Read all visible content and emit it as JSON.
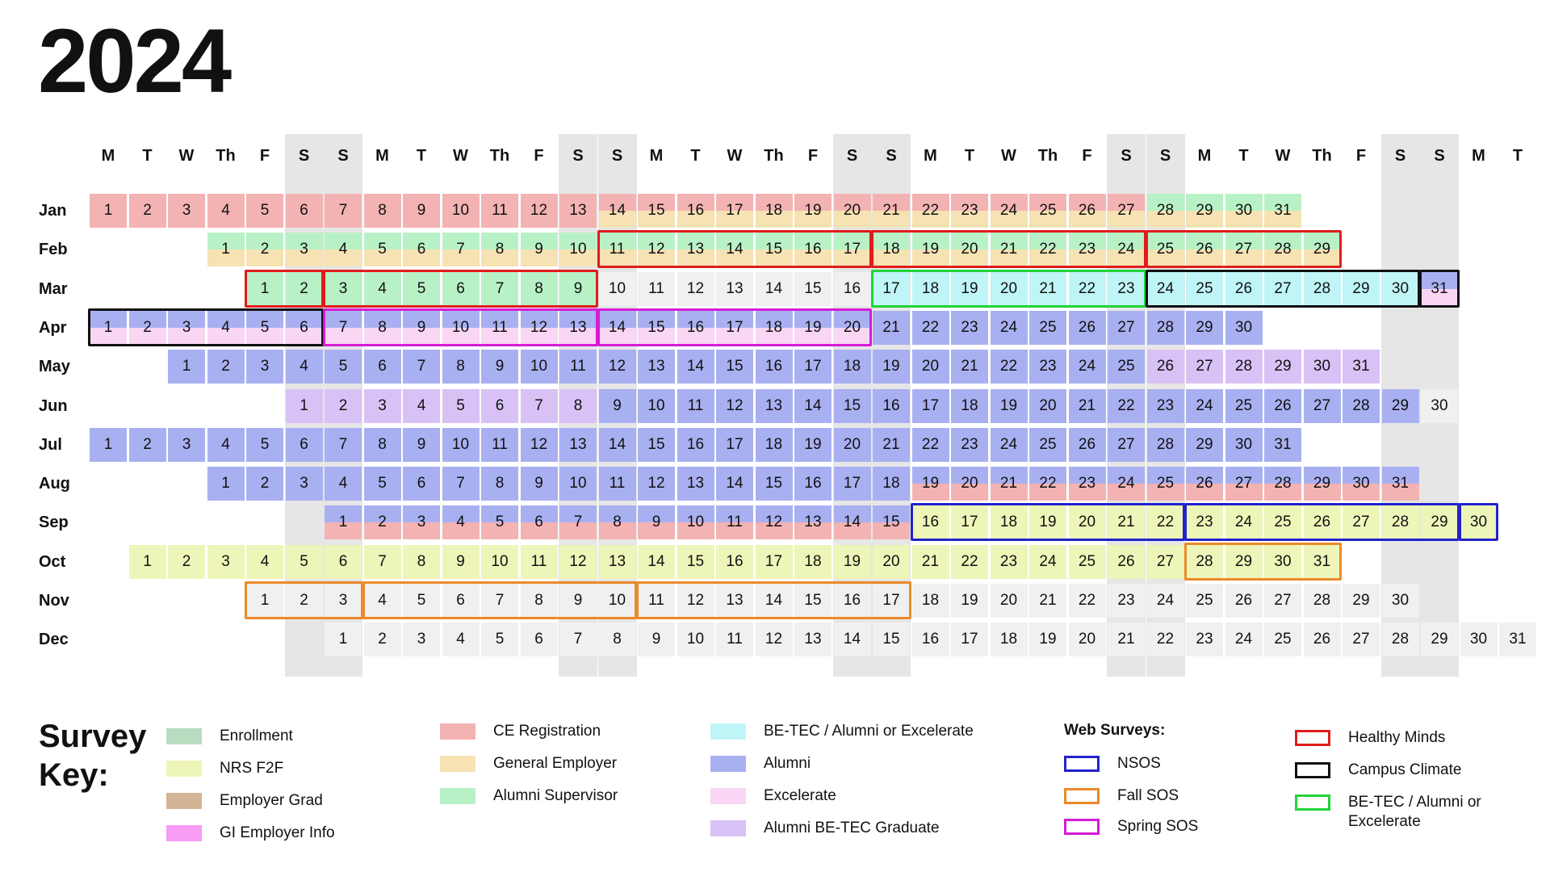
{
  "year": "2024",
  "day_headers": [
    "M",
    "T",
    "W",
    "Th",
    "F",
    "S",
    "S",
    "M",
    "T",
    "W",
    "Th",
    "F",
    "S",
    "S",
    "M",
    "T",
    "W",
    "Th",
    "F",
    "S",
    "S",
    "M",
    "T",
    "W",
    "Th",
    "F",
    "S",
    "S",
    "M",
    "T",
    "W",
    "Th",
    "F",
    "S",
    "S",
    "M",
    "T"
  ],
  "months": [
    {
      "label": "Jan",
      "start_col": 0,
      "days": 31
    },
    {
      "label": "Feb",
      "start_col": 3,
      "days": 29
    },
    {
      "label": "Mar",
      "start_col": 4,
      "days": 31
    },
    {
      "label": "Apr",
      "start_col": 0,
      "days": 30
    },
    {
      "label": "May",
      "start_col": 2,
      "days": 31
    },
    {
      "label": "Jun",
      "start_col": 5,
      "days": 30
    },
    {
      "label": "Jul",
      "start_col": 0,
      "days": 31
    },
    {
      "label": "Aug",
      "start_col": 3,
      "days": 31
    },
    {
      "label": "Sep",
      "start_col": 6,
      "days": 30
    },
    {
      "label": "Oct",
      "start_col": 1,
      "days": 31
    },
    {
      "label": "Nov",
      "start_col": 4,
      "days": 30
    },
    {
      "label": "Dec",
      "start_col": 6,
      "days": 31
    }
  ],
  "colors": {
    "enrollment": "#b9dcc0",
    "nrs_f2f": "#eef5b8",
    "employer_grad": "#d3b497",
    "gi_employer_info": "#f79cf5",
    "ce_registration": "#f4b3b3",
    "general_employer": "#f6e2b3",
    "alumni_supervisor": "#b8f1c6",
    "be_tec_alumni_excelerate": "#bff5f6",
    "alumni": "#a9b0f1",
    "excelerate": "#f9d6f4",
    "alumni_be_tec_graduate": "#d8c2f5",
    "nsos": "#2222cc",
    "fall_sos": "#ea8a2a",
    "spring_sos": "#d61bd6",
    "healthy_minds": "#e01c1c",
    "campus_climate": "#111111",
    "be_tec_web": "#22d33a",
    "blank_day": "#f0f0f0",
    "weekend_band": "#e6e6e6"
  },
  "fills": [
    {
      "month": 1,
      "from": 1,
      "to": 13,
      "top": "ce_registration",
      "bottom": "ce_registration"
    },
    {
      "month": 1,
      "from": 14,
      "to": 27,
      "top": "ce_registration",
      "bottom": "general_employer"
    },
    {
      "month": 1,
      "from": 28,
      "to": 31,
      "top": "alumni_supervisor",
      "bottom": "general_employer"
    },
    {
      "month": 2,
      "from": 1,
      "to": 29,
      "top": "alumni_supervisor",
      "bottom": "general_employer"
    },
    {
      "month": 3,
      "from": 1,
      "to": 9,
      "top": "alumni_supervisor",
      "bottom": "alumni_supervisor"
    },
    {
      "month": 3,
      "from": 10,
      "to": 16,
      "top": "blank_day",
      "bottom": "blank_day"
    },
    {
      "month": 3,
      "from": 17,
      "to": 30,
      "top": "be_tec_alumni_excelerate",
      "bottom": "be_tec_alumni_excelerate"
    },
    {
      "month": 3,
      "from": 31,
      "to": 31,
      "top": "alumni",
      "bottom": "excelerate"
    },
    {
      "month": 4,
      "from": 1,
      "to": 20,
      "top": "alumni",
      "bottom": "excelerate"
    },
    {
      "month": 4,
      "from": 21,
      "to": 30,
      "top": "alumni",
      "bottom": "alumni"
    },
    {
      "month": 5,
      "from": 1,
      "to": 25,
      "top": "alumni",
      "bottom": "alumni"
    },
    {
      "month": 5,
      "from": 26,
      "to": 31,
      "top": "alumni_be_tec_graduate",
      "bottom": "alumni_be_tec_graduate"
    },
    {
      "month": 6,
      "from": 1,
      "to": 8,
      "top": "alumni_be_tec_graduate",
      "bottom": "alumni_be_tec_graduate"
    },
    {
      "month": 6,
      "from": 9,
      "to": 29,
      "top": "alumni",
      "bottom": "alumni"
    },
    {
      "month": 6,
      "from": 30,
      "to": 30,
      "top": "blank_day",
      "bottom": "blank_day"
    },
    {
      "month": 7,
      "from": 1,
      "to": 31,
      "top": "alumni",
      "bottom": "alumni"
    },
    {
      "month": 8,
      "from": 1,
      "to": 18,
      "top": "alumni",
      "bottom": "alumni"
    },
    {
      "month": 8,
      "from": 19,
      "to": 31,
      "top": "alumni",
      "bottom": "ce_registration"
    },
    {
      "month": 9,
      "from": 1,
      "to": 15,
      "top": "alumni",
      "bottom": "ce_registration"
    },
    {
      "month": 9,
      "from": 16,
      "to": 30,
      "top": "nrs_f2f",
      "bottom": "nrs_f2f"
    },
    {
      "month": 10,
      "from": 1,
      "to": 31,
      "top": "nrs_f2f",
      "bottom": "nrs_f2f"
    },
    {
      "month": 11,
      "from": 1,
      "to": 30,
      "top": "blank_day",
      "bottom": "blank_day"
    },
    {
      "month": 12,
      "from": 1,
      "to": 31,
      "top": "blank_day",
      "bottom": "blank_day"
    }
  ],
  "frames": [
    {
      "month": 2,
      "from": 11,
      "to": 17,
      "survey": "healthy_minds"
    },
    {
      "month": 2,
      "from": 18,
      "to": 24,
      "survey": "healthy_minds"
    },
    {
      "month": 2,
      "from": 25,
      "to": 29,
      "survey": "healthy_minds"
    },
    {
      "month": 3,
      "from": 1,
      "to": 2,
      "survey": "healthy_minds"
    },
    {
      "month": 3,
      "from": 3,
      "to": 9,
      "survey": "healthy_minds"
    },
    {
      "month": 3,
      "from": 17,
      "to": 23,
      "survey": "be_tec_web"
    },
    {
      "month": 3,
      "from": 24,
      "to": 30,
      "survey": "campus_climate"
    },
    {
      "month": 3,
      "from": 31,
      "to": 31,
      "survey": "campus_climate"
    },
    {
      "month": 4,
      "from": 1,
      "to": 6,
      "survey": "campus_climate"
    },
    {
      "month": 4,
      "from": 7,
      "to": 13,
      "survey": "spring_sos"
    },
    {
      "month": 4,
      "from": 14,
      "to": 20,
      "survey": "spring_sos"
    },
    {
      "month": 9,
      "from": 16,
      "to": 22,
      "survey": "nsos"
    },
    {
      "month": 9,
      "from": 23,
      "to": 29,
      "survey": "nsos"
    },
    {
      "month": 9,
      "from": 30,
      "to": 30,
      "survey": "nsos"
    },
    {
      "month": 10,
      "from": 28,
      "to": 31,
      "survey": "fall_sos"
    },
    {
      "month": 11,
      "from": 1,
      "to": 3,
      "survey": "fall_sos"
    },
    {
      "month": 11,
      "from": 4,
      "to": 10,
      "survey": "fall_sos"
    },
    {
      "month": 11,
      "from": 11,
      "to": 17,
      "survey": "fall_sos"
    }
  ],
  "key": {
    "title_line1": "Survey",
    "title_line2": "Key:",
    "web_surveys_title": "Web Surveys:",
    "items": [
      {
        "label": "Enrollment",
        "color": "enrollment",
        "style": "fill"
      },
      {
        "label": "NRS F2F",
        "color": "nrs_f2f",
        "style": "fill"
      },
      {
        "label": "Employer Grad",
        "color": "employer_grad",
        "style": "fill"
      },
      {
        "label": "GI Employer Info",
        "color": "gi_employer_info",
        "style": "fill"
      },
      {
        "label": "CE Registration",
        "color": "ce_registration",
        "style": "fill"
      },
      {
        "label": "General Employer",
        "color": "general_employer",
        "style": "fill"
      },
      {
        "label": "Alumni Supervisor",
        "color": "alumni_supervisor",
        "style": "fill"
      },
      {
        "label": "BE-TEC / Alumni or Excelerate",
        "color": "be_tec_alumni_excelerate",
        "style": "fill"
      },
      {
        "label": "Alumni",
        "color": "alumni",
        "style": "fill"
      },
      {
        "label": "Excelerate",
        "color": "excelerate",
        "style": "fill"
      },
      {
        "label": "Alumni BE-TEC Graduate",
        "color": "alumni_be_tec_graduate",
        "style": "fill"
      },
      {
        "label": "NSOS",
        "color": "nsos",
        "style": "outline"
      },
      {
        "label": "Fall SOS",
        "color": "fall_sos",
        "style": "outline"
      },
      {
        "label": "Spring SOS",
        "color": "spring_sos",
        "style": "outline"
      },
      {
        "label": "Healthy Minds",
        "color": "healthy_minds",
        "style": "outline"
      },
      {
        "label": "Campus Climate",
        "color": "campus_climate",
        "style": "outline"
      },
      {
        "label": "BE-TEC / Alumni or Excelerate",
        "color": "be_tec_web",
        "style": "outline"
      }
    ]
  }
}
